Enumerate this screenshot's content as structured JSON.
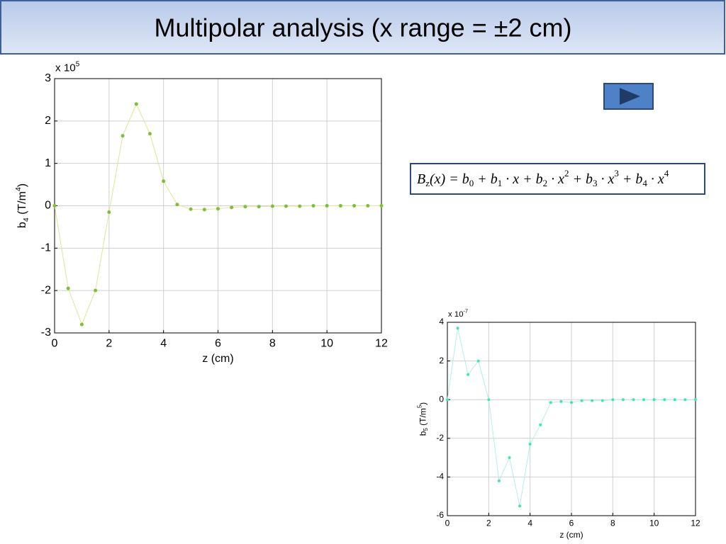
{
  "slide_title": "Multipolar analysis (x range = ±2 cm)",
  "formula": [
    {
      "text": "B"
    },
    {
      "text": "z",
      "shift": "sub"
    },
    {
      "text": "(x) = "
    },
    {
      "text": "b"
    },
    {
      "text": "0",
      "shift": "sub"
    },
    {
      "text": " + "
    },
    {
      "text": "b"
    },
    {
      "text": "1",
      "shift": "sub"
    },
    {
      "text": " · x + "
    },
    {
      "text": "b"
    },
    {
      "text": "2",
      "shift": "sub"
    },
    {
      "text": " · x"
    },
    {
      "text": "2",
      "shift": "sup"
    },
    {
      "text": " + "
    },
    {
      "text": "b"
    },
    {
      "text": "3",
      "shift": "sub"
    },
    {
      "text": " · x"
    },
    {
      "text": "3",
      "shift": "sup"
    },
    {
      "text": " + "
    },
    {
      "text": "b"
    },
    {
      "text": "4",
      "shift": "sub"
    },
    {
      "text": " · x"
    },
    {
      "text": "4",
      "shift": "sup"
    }
  ],
  "chart_data": [
    {
      "type": "line",
      "multiplier": [
        {
          "text": "x 10"
        },
        {
          "text": "5",
          "shift": "sup"
        }
      ],
      "xlabel": "z (cm)",
      "ylabel": [
        {
          "text": "b"
        },
        {
          "text": "4",
          "shift": "sub"
        },
        {
          "text": " (T/m"
        },
        {
          "text": "4",
          "shift": "sup"
        },
        {
          "text": ")"
        }
      ],
      "x": [
        0,
        0.5,
        1,
        1.5,
        2,
        2.5,
        3,
        3.5,
        4,
        4.5,
        5,
        5.5,
        6,
        6.5,
        7,
        7.5,
        8,
        8.5,
        9,
        9.5,
        10,
        10.5,
        11,
        11.5,
        12
      ],
      "series": [
        {
          "color": "#7cbf3a",
          "line_color": "#e3e39a",
          "values": [
            0,
            -1.95,
            -2.8,
            -2.0,
            -0.15,
            1.65,
            2.4,
            1.7,
            0.58,
            0.03,
            -0.08,
            -0.09,
            -0.07,
            -0.04,
            -0.02,
            -0.02,
            -0.01,
            -0.01,
            -0.01,
            0,
            0,
            0,
            0,
            0,
            0
          ]
        }
      ],
      "xlim": [
        0,
        12
      ],
      "xticks": [
        0,
        2,
        4,
        6,
        8,
        10,
        12
      ],
      "ylim": [
        -3,
        3
      ],
      "yticks": [
        -3,
        -2,
        -1,
        0,
        1,
        2,
        3
      ],
      "grid": true
    },
    {
      "type": "line",
      "multiplier": [
        {
          "text": "x 10"
        },
        {
          "text": "-7",
          "shift": "sup"
        }
      ],
      "xlabel": "z (cm)",
      "ylabel": [
        {
          "text": "b"
        },
        {
          "text": "5",
          "shift": "sub"
        },
        {
          "text": " (T/m"
        },
        {
          "text": "5",
          "shift": "sup"
        },
        {
          "text": ")"
        }
      ],
      "x": [
        0,
        0.5,
        1,
        1.5,
        2,
        2.5,
        3,
        3.5,
        4,
        4.5,
        5,
        5.5,
        6,
        6.5,
        7,
        7.5,
        8,
        8.5,
        9,
        9.5,
        10,
        10.5,
        11,
        11.5,
        12
      ],
      "series": [
        {
          "color": "#3fe8a4",
          "line_color": "#b6ecec",
          "values": [
            0,
            3.7,
            1.3,
            2.0,
            0,
            -4.2,
            -3.0,
            -5.5,
            -2.3,
            -1.3,
            -0.15,
            -0.1,
            -0.15,
            -0.05,
            -0.05,
            -0.05,
            0,
            0,
            0,
            0,
            0,
            0,
            0,
            0,
            0
          ]
        }
      ],
      "xlim": [
        0,
        12
      ],
      "xticks": [
        0,
        2,
        4,
        6,
        8,
        10,
        12
      ],
      "ylim": [
        -6,
        4
      ],
      "yticks": [
        -6,
        -4,
        -2,
        0,
        2,
        4
      ],
      "grid": true
    }
  ]
}
